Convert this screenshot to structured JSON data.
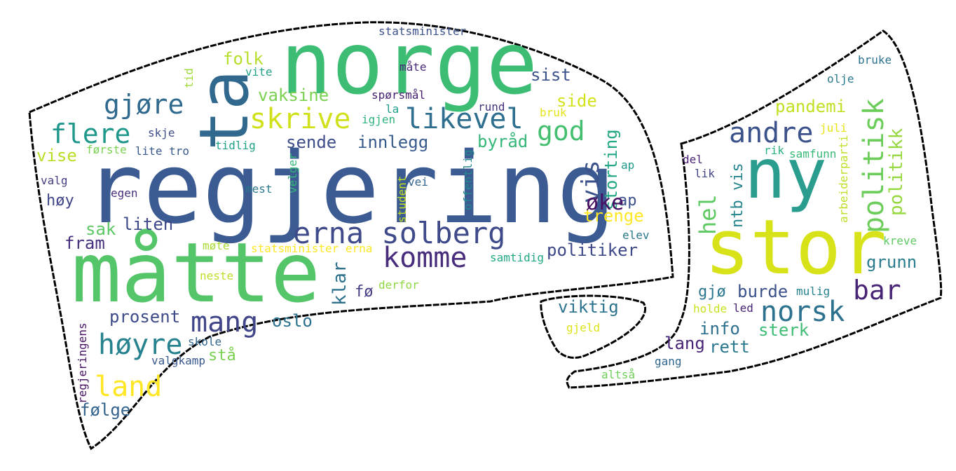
{
  "words": [
    {
      "text": "regjering",
      "color": "#3b5b92"
    },
    {
      "text": "norge",
      "color": "#3dbc74"
    },
    {
      "text": "måtte",
      "color": "#54c568"
    },
    {
      "text": "stor",
      "color": "#d8e219"
    },
    {
      "text": "ny",
      "color": "#2a9d8f"
    },
    {
      "text": "ta",
      "color": "#31688e"
    },
    {
      "text": "erna solberg",
      "color": "#3e4a89"
    },
    {
      "text": "skrive",
      "color": "#d0e11c"
    },
    {
      "text": "likevel",
      "color": "#2e6e8e"
    },
    {
      "text": "komme",
      "color": "#472d7b"
    },
    {
      "text": "høyre",
      "color": "#26828e"
    },
    {
      "text": "land",
      "color": "#fde725"
    },
    {
      "text": "mang",
      "color": "#404688"
    },
    {
      "text": "andre",
      "color": "#3b528b"
    },
    {
      "text": "norsk",
      "color": "#2c728e"
    },
    {
      "text": "politisk",
      "color": "#6ccd5a"
    },
    {
      "text": "bar",
      "color": "#482475"
    },
    {
      "text": "gjøre",
      "color": "#30698e"
    },
    {
      "text": "flere",
      "color": "#1f988b"
    },
    {
      "text": "god",
      "color": "#44bf70"
    },
    {
      "text": "vis",
      "color": "#3b528b"
    },
    {
      "text": "hel",
      "color": "#5ec962"
    },
    {
      "text": "politikk",
      "color": "#95d840"
    },
    {
      "text": "ntb vis",
      "color": "#25858e"
    },
    {
      "text": "storting",
      "color": "#22a884"
    },
    {
      "text": "sende",
      "color": "#3e4c8a"
    },
    {
      "text": "innlegg",
      "color": "#375a8c"
    },
    {
      "text": "byråd",
      "color": "#35b779"
    },
    {
      "text": "trenge",
      "color": "#fde725"
    },
    {
      "text": "politiker",
      "color": "#3f4889"
    },
    {
      "text": "sist",
      "color": "#3b528b"
    },
    {
      "text": "side",
      "color": "#d2e21b"
    },
    {
      "text": "vaksine",
      "color": "#7ad151"
    },
    {
      "text": "folk",
      "color": "#b5de2b"
    },
    {
      "text": "vise",
      "color": "#b8de29"
    },
    {
      "text": "viktig",
      "color": "#2c738e"
    },
    {
      "text": "pandemi",
      "color": "#c2df23"
    },
    {
      "text": "grunn",
      "color": "#287c8e"
    },
    {
      "text": "burde",
      "color": "#3b528b"
    },
    {
      "text": "info",
      "color": "#2d708e"
    },
    {
      "text": "sterk",
      "color": "#3fbc73"
    },
    {
      "text": "rett",
      "color": "#2a788e"
    },
    {
      "text": "lang",
      "color": "#482576"
    },
    {
      "text": "liten",
      "color": "#3e4989"
    },
    {
      "text": "sak",
      "color": "#5cc863"
    },
    {
      "text": "prosent",
      "color": "#3e4a89"
    },
    {
      "text": "oslo",
      "color": "#2c728e"
    },
    {
      "text": "følge",
      "color": "#33638d"
    },
    {
      "text": "fram",
      "color": "#46307e"
    },
    {
      "text": "høy",
      "color": "#404588"
    },
    {
      "text": "stå",
      "color": "#7ad151"
    },
    {
      "text": "gjø",
      "color": "#2a768e"
    },
    {
      "text": "fø",
      "color": "#433e85"
    },
    {
      "text": "ap",
      "color": "#3b518b"
    },
    {
      "text": "klar",
      "color": "#2d718e"
    },
    {
      "text": "øke",
      "color": "#471063"
    },
    {
      "text": "bruke",
      "color": "#2c728e"
    },
    {
      "text": "olje",
      "color": "#29798e"
    },
    {
      "text": "statsminister",
      "color": "#3b528b"
    },
    {
      "text": "måte",
      "color": "#482878"
    },
    {
      "text": "spørsmål",
      "color": "#482071"
    },
    {
      "text": "la",
      "color": "#1f9e89"
    },
    {
      "text": "igjen",
      "color": "#2eb37c"
    },
    {
      "text": "rund",
      "color": "#46317e"
    },
    {
      "text": "bruk",
      "color": "#e5e419"
    },
    {
      "text": "vite",
      "color": "#20a386"
    },
    {
      "text": "skje",
      "color": "#3e4c8a"
    },
    {
      "text": "første",
      "color": "#7ad151"
    },
    {
      "text": "lite tro",
      "color": "#38598c"
    },
    {
      "text": "tidlig",
      "color": "#1fa187"
    },
    {
      "text": "valg",
      "color": "#433e85"
    },
    {
      "text": "egen",
      "color": "#472f7d"
    },
    {
      "text": "mest",
      "color": "#2a788e"
    },
    {
      "text": "vei",
      "color": "#33638d"
    },
    {
      "text": "ap",
      "color": "#1e9b8a"
    },
    {
      "text": "elev",
      "color": "#2a788e"
    },
    {
      "text": "del",
      "color": "#482173"
    },
    {
      "text": "lik",
      "color": "#414487"
    },
    {
      "text": "rik",
      "color": "#2db27d"
    },
    {
      "text": "samfunn",
      "color": "#38b977"
    },
    {
      "text": "møte",
      "color": "#a8db34"
    },
    {
      "text": "statsminister erna",
      "color": "#fde725"
    },
    {
      "text": "samtidig",
      "color": "#22a884"
    },
    {
      "text": "kreve",
      "color": "#5ec962"
    },
    {
      "text": "neste",
      "color": "#bddf26"
    },
    {
      "text": "derfor",
      "color": "#90d743"
    },
    {
      "text": "mulig",
      "color": "#26828e"
    },
    {
      "text": "led",
      "color": "#482475"
    },
    {
      "text": "holde",
      "color": "#cae11f"
    },
    {
      "text": "gjeld",
      "color": "#dde318"
    },
    {
      "text": "skole",
      "color": "#31668e"
    },
    {
      "text": "valgkamp",
      "color": "#38598c"
    },
    {
      "text": "gang",
      "color": "#31688e"
    },
    {
      "text": "altså",
      "color": "#6ece58"
    },
    {
      "text": "tid",
      "color": "#a0da39"
    },
    {
      "text": "velger",
      "color": "#34b679"
    },
    {
      "text": "student",
      "color": "#c5e021"
    },
    {
      "text": "offentlig",
      "color": "#23898e"
    },
    {
      "text": "arbeiderparti",
      "color": "#bddf26"
    },
    {
      "text": "juli",
      "color": "#e7e419"
    },
    {
      "text": "regjeringens",
      "color": "#471365"
    }
  ]
}
